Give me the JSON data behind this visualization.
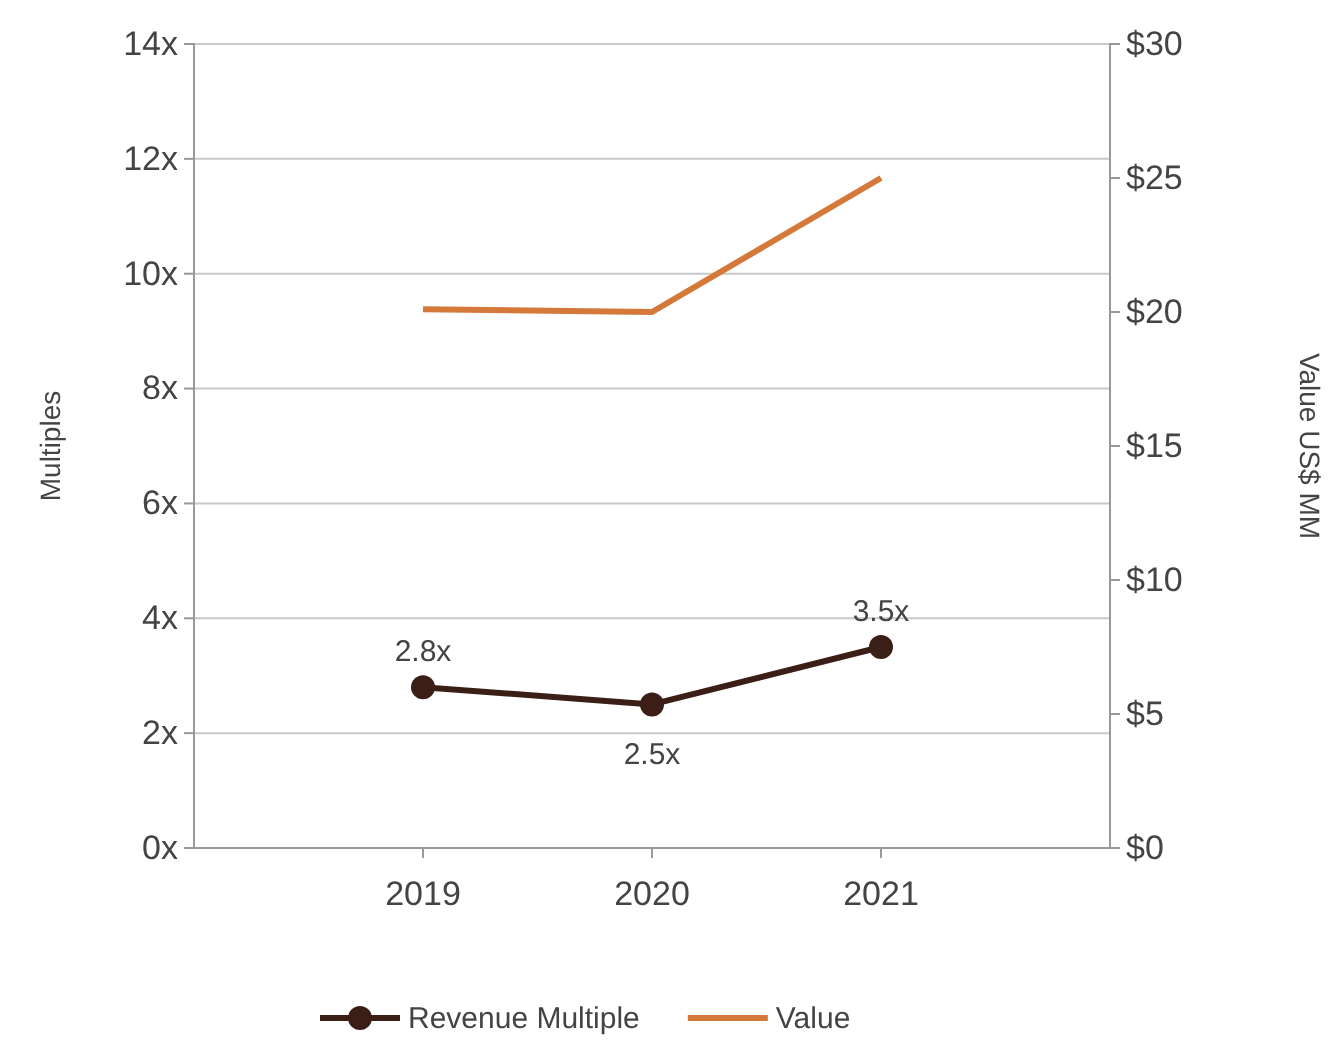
{
  "chart_data": {
    "type": "line",
    "categories": [
      "2019",
      "2020",
      "2021"
    ],
    "ylabel": "Multiples",
    "y2label": "Value US$ MM",
    "ylim": [
      0,
      14
    ],
    "yticks": [
      {
        "value": 0,
        "label": "0x"
      },
      {
        "value": 2,
        "label": "2x"
      },
      {
        "value": 4,
        "label": "4x"
      },
      {
        "value": 6,
        "label": "6x"
      },
      {
        "value": 8,
        "label": "8x"
      },
      {
        "value": 10,
        "label": "10x"
      },
      {
        "value": 12,
        "label": "12x"
      },
      {
        "value": 14,
        "label": "14x"
      }
    ],
    "y2lim": [
      0,
      30
    ],
    "y2ticks": [
      {
        "value": 0,
        "label": "$0"
      },
      {
        "value": 5,
        "label": "$5"
      },
      {
        "value": 10,
        "label": "$10"
      },
      {
        "value": 15,
        "label": "$15"
      },
      {
        "value": 20,
        "label": "$20"
      },
      {
        "value": 25,
        "label": "$25"
      },
      {
        "value": 30,
        "label": "$30"
      }
    ],
    "series": [
      {
        "name": "Revenue Multiple",
        "color": "#3b1f17",
        "values": [
          2.8,
          2.5,
          3.5
        ],
        "marker": "circle",
        "value_labels": [
          "2.8x",
          "2.5x",
          "3.5x"
        ]
      },
      {
        "name": "Value",
        "color": "#d5793a",
        "values": [
          20.1,
          20.0,
          25.0
        ],
        "axis": "y2",
        "marker": "none"
      }
    ],
    "grid": "y",
    "legend": "bottom",
    "line_style": "solid"
  }
}
